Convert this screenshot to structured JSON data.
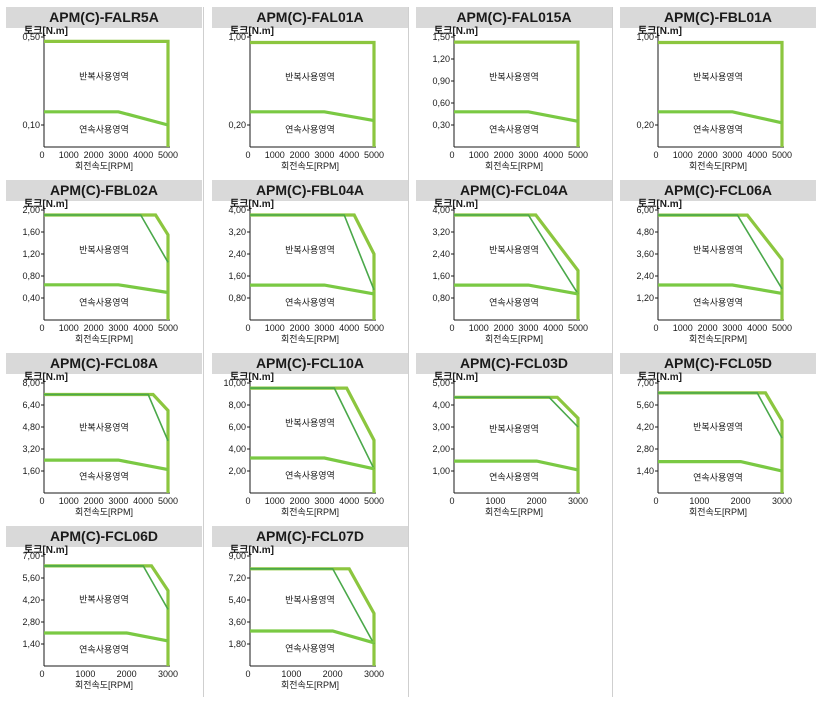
{
  "chart_data": [
    {
      "type": "line",
      "title": "APM(C)-FALR5A",
      "ylabel": "토크[N.m]",
      "xlabel": "회전속도[RPM]",
      "xlim": [
        0,
        5000
      ],
      "ylim": [
        0,
        0.5
      ],
      "yticks": [
        "0,10",
        "0,50"
      ],
      "xticks": [
        "0",
        "1000",
        "2000",
        "3000",
        "4000",
        "5000"
      ],
      "regions": [
        "반복사용영역",
        "연속사용영역"
      ],
      "series": [
        {
          "role": "peak",
          "x": [
            0,
            5000,
            5000
          ],
          "y": [
            0.48,
            0.48,
            0
          ]
        },
        {
          "role": "continuous",
          "x": [
            0,
            3000,
            5000
          ],
          "y": [
            0.16,
            0.16,
            0.1
          ]
        }
      ]
    },
    {
      "type": "line",
      "title": "APM(C)-FAL01A",
      "ylabel": "토크[N.m]",
      "xlabel": "회전속도[RPM]",
      "xlim": [
        0,
        5000
      ],
      "ylim": [
        0,
        1.0
      ],
      "yticks": [
        "0,20",
        "1,00"
      ],
      "xticks": [
        "0",
        "1000",
        "2000",
        "3000",
        "4000",
        "5000"
      ],
      "regions": [
        "반복사용영역",
        "연속사용영역"
      ],
      "series": [
        {
          "role": "peak",
          "x": [
            0,
            5000,
            5000
          ],
          "y": [
            0.95,
            0.95,
            0
          ]
        },
        {
          "role": "continuous",
          "x": [
            0,
            3000,
            5000
          ],
          "y": [
            0.32,
            0.32,
            0.24
          ]
        }
      ]
    },
    {
      "type": "line",
      "title": "APM(C)-FAL015A",
      "ylabel": "토크[N.m]",
      "xlabel": "회전속도[RPM]",
      "xlim": [
        0,
        5000
      ],
      "ylim": [
        0,
        1.5
      ],
      "yticks": [
        "0,30",
        "0,60",
        "0,90",
        "1,20",
        "1,50"
      ],
      "xticks": [
        "0",
        "1000",
        "2000",
        "3000",
        "4000",
        "5000"
      ],
      "regions": [
        "반복사용영역",
        "연속사용영역"
      ],
      "series": [
        {
          "role": "peak",
          "x": [
            0,
            5000,
            5000
          ],
          "y": [
            1.43,
            1.43,
            0
          ]
        },
        {
          "role": "continuous",
          "x": [
            0,
            3000,
            5000
          ],
          "y": [
            0.48,
            0.48,
            0.35
          ]
        }
      ]
    },
    {
      "type": "line",
      "title": "APM(C)-FBL01A",
      "ylabel": "토크[N.m]",
      "xlabel": "회전속도[RPM]",
      "xlim": [
        0,
        5000
      ],
      "ylim": [
        0,
        1.0
      ],
      "yticks": [
        "0,20",
        "1,00"
      ],
      "xticks": [
        "0",
        "1000",
        "2000",
        "3000",
        "4000",
        "5000"
      ],
      "regions": [
        "반복사용영역",
        "연속사용영역"
      ],
      "series": [
        {
          "role": "peak",
          "x": [
            0,
            5000,
            5000
          ],
          "y": [
            0.95,
            0.95,
            0
          ]
        },
        {
          "role": "continuous",
          "x": [
            0,
            3000,
            5000
          ],
          "y": [
            0.32,
            0.32,
            0.22
          ]
        }
      ]
    },
    {
      "type": "line",
      "title": "APM(C)-FBL02A",
      "ylabel": "토크[N.m]",
      "xlabel": "회전속도[RPM]",
      "xlim": [
        0,
        5000
      ],
      "ylim": [
        0,
        2.0
      ],
      "yticks": [
        "0,40",
        "0,80",
        "1,20",
        "1,60",
        "2,00"
      ],
      "xticks": [
        "0",
        "1000",
        "2000",
        "3000",
        "4000",
        "5000"
      ],
      "regions": [
        "반복사용영역",
        "연속사용영역"
      ],
      "series": [
        {
          "role": "peak",
          "x": [
            0,
            4000,
            4500,
            5000,
            5000
          ],
          "y": [
            1.91,
            1.91,
            1.91,
            1.55,
            0
          ]
        },
        {
          "role": "peak-low",
          "x": [
            0,
            3900,
            5000
          ],
          "y": [
            1.91,
            1.91,
            1.05
          ]
        },
        {
          "role": "continuous",
          "x": [
            0,
            3000,
            5000
          ],
          "y": [
            0.64,
            0.64,
            0.5
          ]
        }
      ]
    },
    {
      "type": "line",
      "title": "APM(C)-FBL04A",
      "ylabel": "토크[N.m]",
      "xlabel": "회전속도[RPM]",
      "xlim": [
        0,
        5000
      ],
      "ylim": [
        0,
        4.0
      ],
      "yticks": [
        "0,80",
        "1,60",
        "2,40",
        "3,20",
        "4,00"
      ],
      "xticks": [
        "0",
        "1000",
        "2000",
        "3000",
        "4000",
        "5000"
      ],
      "regions": [
        "반복사용영역",
        "연속사용영역"
      ],
      "series": [
        {
          "role": "peak",
          "x": [
            0,
            4200,
            5000,
            5000
          ],
          "y": [
            3.82,
            3.82,
            2.4,
            0
          ]
        },
        {
          "role": "peak-low",
          "x": [
            0,
            3800,
            5000
          ],
          "y": [
            3.82,
            3.82,
            1.1
          ]
        },
        {
          "role": "continuous",
          "x": [
            0,
            3000,
            5000
          ],
          "y": [
            1.27,
            1.27,
            0.95
          ]
        }
      ]
    },
    {
      "type": "line",
      "title": "APM(C)-FCL04A",
      "ylabel": "토크[N.m]",
      "xlabel": "회전속도[RPM]",
      "xlim": [
        0,
        5000
      ],
      "ylim": [
        0,
        4.0
      ],
      "yticks": [
        "0,80",
        "1,60",
        "2,40",
        "3,20",
        "4,00"
      ],
      "xticks": [
        "0",
        "1000",
        "2000",
        "3000",
        "4000",
        "5000"
      ],
      "regions": [
        "반복사용영역",
        "연속사용영역"
      ],
      "series": [
        {
          "role": "peak",
          "x": [
            0,
            3300,
            5000,
            5000
          ],
          "y": [
            3.82,
            3.82,
            1.8,
            0
          ]
        },
        {
          "role": "peak-low",
          "x": [
            0,
            3000,
            5000
          ],
          "y": [
            3.82,
            3.82,
            0.95
          ]
        },
        {
          "role": "continuous",
          "x": [
            0,
            3000,
            5000
          ],
          "y": [
            1.27,
            1.27,
            0.95
          ]
        }
      ]
    },
    {
      "type": "line",
      "title": "APM(C)-FCL06A",
      "ylabel": "토크[N.m]",
      "xlabel": "회전속도[RPM]",
      "xlim": [
        0,
        5000
      ],
      "ylim": [
        0,
        6.0
      ],
      "yticks": [
        "1,20",
        "2,40",
        "3,60",
        "4,80",
        "6,00"
      ],
      "xticks": [
        "0",
        "1000",
        "2000",
        "3000",
        "4000",
        "5000"
      ],
      "regions": [
        "반복사용영역",
        "연속사용영역"
      ],
      "series": [
        {
          "role": "peak",
          "x": [
            0,
            3600,
            5000,
            5000
          ],
          "y": [
            5.72,
            5.72,
            3.3,
            0
          ]
        },
        {
          "role": "peak-low",
          "x": [
            0,
            3200,
            5000
          ],
          "y": [
            5.72,
            5.72,
            1.7
          ]
        },
        {
          "role": "continuous",
          "x": [
            0,
            3000,
            5000
          ],
          "y": [
            1.91,
            1.91,
            1.45
          ]
        }
      ]
    },
    {
      "type": "line",
      "title": "APM(C)-FCL08A",
      "ylabel": "토크[N.m]",
      "xlabel": "회전속도[RPM]",
      "xlim": [
        0,
        5000
      ],
      "ylim": [
        0,
        8.0
      ],
      "yticks": [
        "1,60",
        "3,20",
        "4,80",
        "6,40",
        "8,00"
      ],
      "xticks": [
        "0",
        "1000",
        "2000",
        "3000",
        "4000",
        "5000"
      ],
      "regions": [
        "반복사용영역",
        "연속사용영역"
      ],
      "series": [
        {
          "role": "peak",
          "x": [
            0,
            4400,
            5000,
            5000
          ],
          "y": [
            7.16,
            7.16,
            6.0,
            0
          ]
        },
        {
          "role": "peak-low",
          "x": [
            0,
            4200,
            5000
          ],
          "y": [
            7.16,
            7.16,
            3.8
          ]
        },
        {
          "role": "continuous",
          "x": [
            0,
            3000,
            5000
          ],
          "y": [
            2.39,
            2.39,
            1.7
          ]
        }
      ]
    },
    {
      "type": "line",
      "title": "APM(C)-FCL10A",
      "ylabel": "토크[N.m]",
      "xlabel": "회전속도[RPM]",
      "xlim": [
        0,
        5000
      ],
      "ylim": [
        0,
        10.0
      ],
      "yticks": [
        "2,00",
        "4,00",
        "6,00",
        "8,00",
        "10,00"
      ],
      "xticks": [
        "0",
        "1000",
        "2000",
        "3000",
        "4000",
        "5000"
      ],
      "regions": [
        "반복사용영역",
        "연속사용영역"
      ],
      "series": [
        {
          "role": "peak",
          "x": [
            0,
            3900,
            5000,
            5000
          ],
          "y": [
            9.54,
            9.54,
            4.8,
            0
          ]
        },
        {
          "role": "peak-low",
          "x": [
            0,
            3400,
            5000
          ],
          "y": [
            9.54,
            9.54,
            2.2
          ]
        },
        {
          "role": "continuous",
          "x": [
            0,
            3000,
            5000
          ],
          "y": [
            3.18,
            3.18,
            2.2
          ]
        }
      ]
    },
    {
      "type": "line",
      "title": "APM(C)-FCL03D",
      "ylabel": "토크[N.m]",
      "xlabel": "회전속도[RPM]",
      "xlim": [
        0,
        3000
      ],
      "ylim": [
        0,
        5.0
      ],
      "yticks": [
        "1,00",
        "2,00",
        "3,00",
        "4,00",
        "5,00"
      ],
      "xticks": [
        "0",
        "1000",
        "2000",
        "3000"
      ],
      "regions": [
        "반복사용영역",
        "연속사용영역"
      ],
      "series": [
        {
          "role": "peak",
          "x": [
            0,
            2500,
            3000,
            3000
          ],
          "y": [
            4.35,
            4.35,
            3.4,
            0
          ]
        },
        {
          "role": "peak-low",
          "x": [
            0,
            2300,
            3000
          ],
          "y": [
            4.35,
            4.35,
            3.0
          ]
        },
        {
          "role": "continuous",
          "x": [
            0,
            2000,
            3000
          ],
          "y": [
            1.45,
            1.45,
            1.05
          ]
        }
      ]
    },
    {
      "type": "line",
      "title": "APM(C)-FCL05D",
      "ylabel": "토크[N.m]",
      "xlabel": "회전속도[RPM]",
      "xlim": [
        0,
        3000
      ],
      "ylim": [
        0,
        7.0
      ],
      "yticks": [
        "1,40",
        "2,80",
        "4,20",
        "5,60",
        "7,00"
      ],
      "xticks": [
        "0",
        "1000",
        "2000",
        "3000"
      ],
      "regions": [
        "반복사용영역",
        "연속사용영역"
      ],
      "series": [
        {
          "role": "peak",
          "x": [
            0,
            2600,
            3000,
            3000
          ],
          "y": [
            6.37,
            6.37,
            4.6,
            0
          ]
        },
        {
          "role": "peak-low",
          "x": [
            0,
            2400,
            3000
          ],
          "y": [
            6.37,
            6.37,
            3.5
          ]
        },
        {
          "role": "continuous",
          "x": [
            0,
            2000,
            3000
          ],
          "y": [
            2.0,
            2.0,
            1.4
          ]
        }
      ]
    },
    {
      "type": "line",
      "title": "APM(C)-FCL06D",
      "ylabel": "토크[N.m]",
      "xlabel": "회전속도[RPM]",
      "xlim": [
        0,
        3000
      ],
      "ylim": [
        0,
        7.0
      ],
      "yticks": [
        "1,40",
        "2,80",
        "4,20",
        "5,60",
        "7,00"
      ],
      "xticks": [
        "0",
        "1000",
        "2000",
        "3000"
      ],
      "regions": [
        "반복사용영역",
        "연속사용영역"
      ],
      "series": [
        {
          "role": "peak",
          "x": [
            0,
            2600,
            3000,
            3000
          ],
          "y": [
            6.37,
            6.37,
            4.8,
            0
          ]
        },
        {
          "role": "peak-low",
          "x": [
            0,
            2400,
            3000
          ],
          "y": [
            6.37,
            6.37,
            3.6
          ]
        },
        {
          "role": "continuous",
          "x": [
            0,
            2000,
            3000
          ],
          "y": [
            2.1,
            2.1,
            1.6
          ]
        }
      ]
    },
    {
      "type": "line",
      "title": "APM(C)-FCL07D",
      "ylabel": "토크[N.m]",
      "xlabel": "회전속도[RPM]",
      "xlim": [
        0,
        3000
      ],
      "ylim": [
        0,
        9.0
      ],
      "yticks": [
        "1,80",
        "3,60",
        "5,40",
        "7,20",
        "9,00"
      ],
      "xticks": [
        "0",
        "1000",
        "2000",
        "3000"
      ],
      "regions": [
        "반복사용영역",
        "연속사용영역"
      ],
      "series": [
        {
          "role": "peak",
          "x": [
            0,
            2400,
            3000,
            3000
          ],
          "y": [
            7.95,
            7.95,
            4.3,
            0
          ]
        },
        {
          "role": "peak-low",
          "x": [
            0,
            2000,
            3000
          ],
          "y": [
            7.95,
            7.95,
            1.8
          ]
        },
        {
          "role": "continuous",
          "x": [
            0,
            2000,
            3000
          ],
          "y": [
            2.86,
            2.86,
            1.9
          ]
        }
      ]
    }
  ],
  "colors": {
    "peak": "#8cc63f",
    "peak_low": "#4aa84a",
    "continuous": "#7ac943",
    "axis": "#1a1a1a",
    "header": "#d9d9d9"
  }
}
